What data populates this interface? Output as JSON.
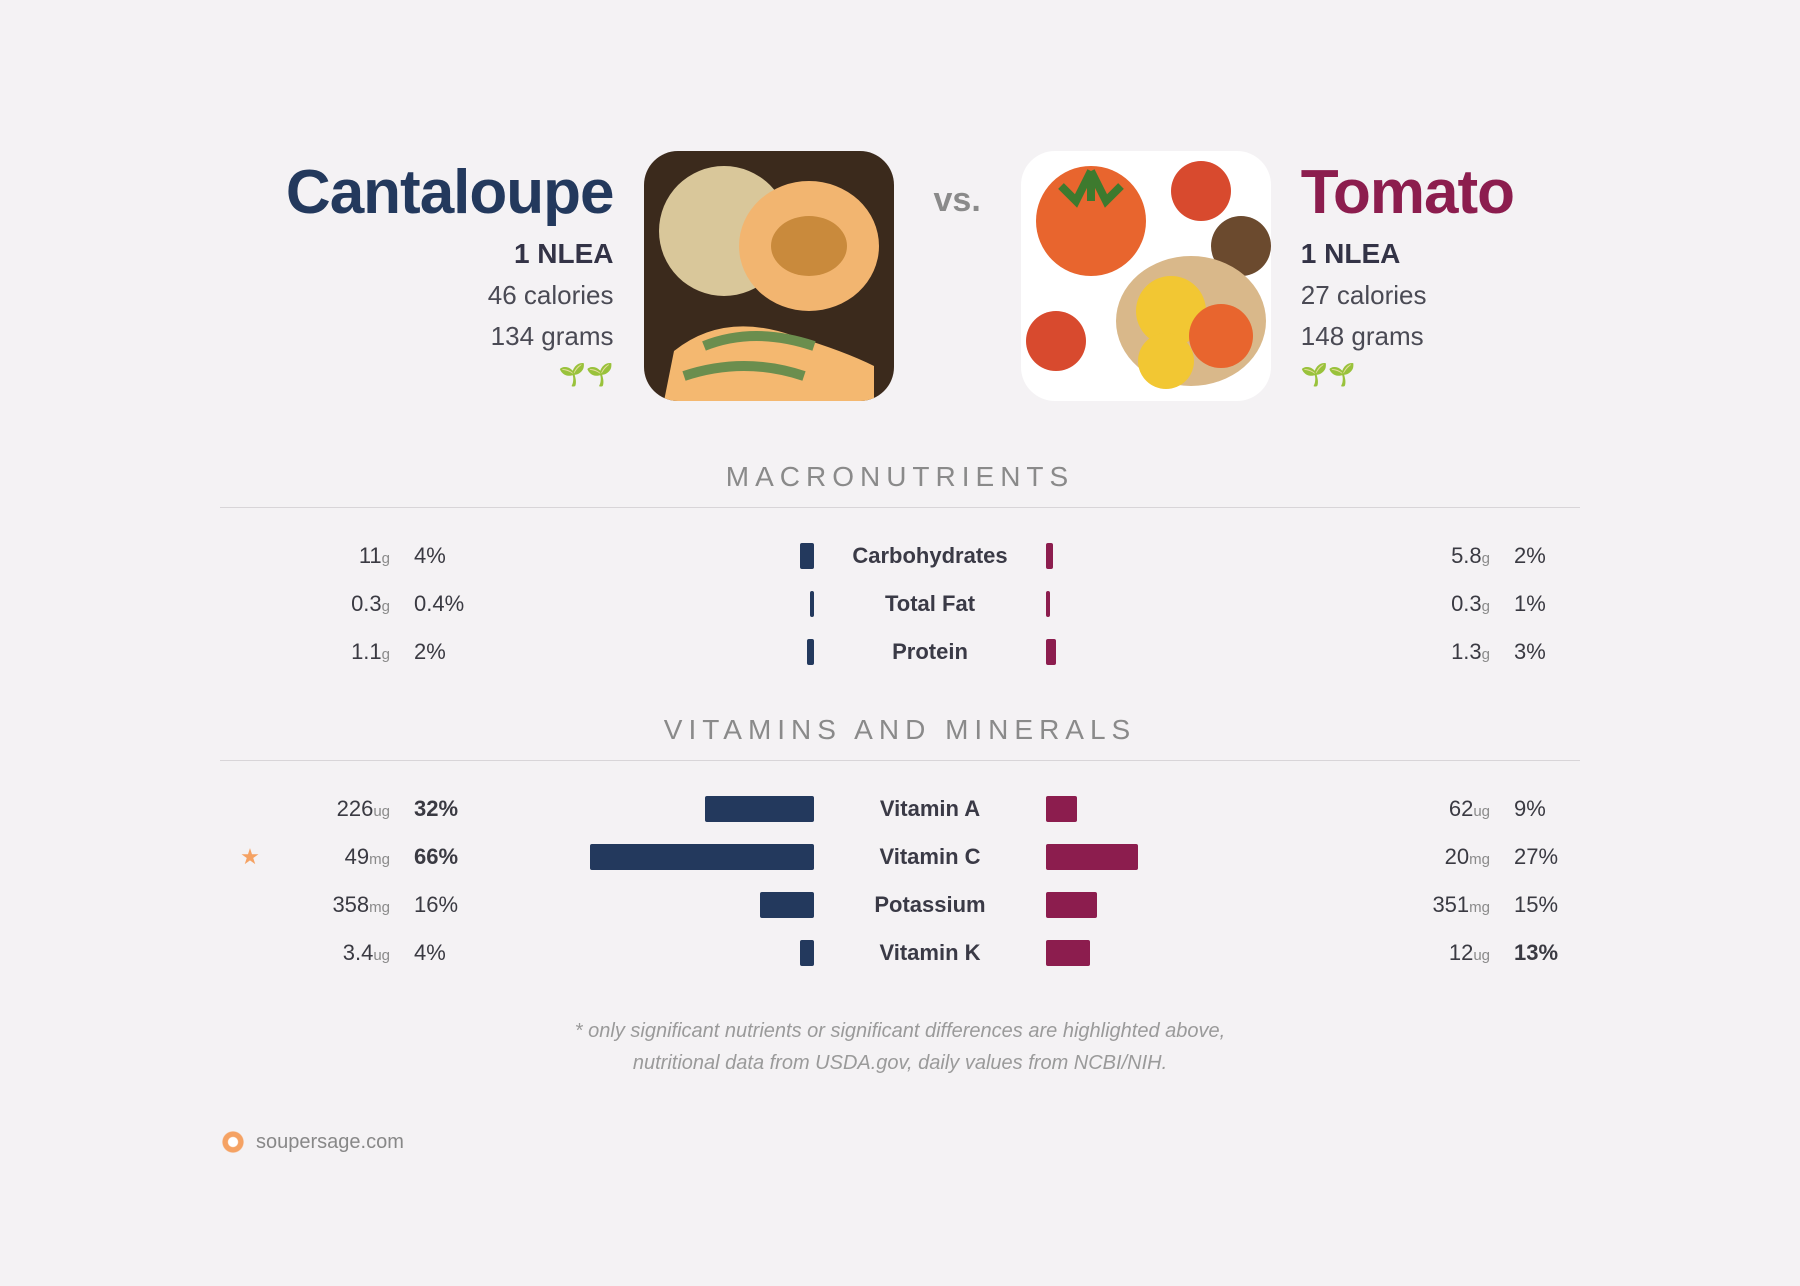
{
  "vs": "vs.",
  "left": {
    "title": "Cantaloupe",
    "titleColor": "#23395d",
    "serving": "1 NLEA",
    "calories": "46 calories",
    "grams": "134 grams",
    "sprouts": "🌱🌱"
  },
  "right": {
    "title": "Tomato",
    "titleColor": "#8c1d4e",
    "serving": "1 NLEA",
    "calories": "27 calories",
    "grams": "148 grams",
    "sprouts": "🌱🌱"
  },
  "colors": {
    "leftBar": "#23395d",
    "rightBar": "#8c1d4e"
  },
  "barMax": 100,
  "barFullWidth": 340,
  "sections": [
    {
      "title": "MACRONUTRIENTS",
      "rows": [
        {
          "label": "Carbohydrates",
          "lVal": "11",
          "lUnit": "g",
          "lPct": "4%",
          "lBold": false,
          "lBar": 4,
          "rVal": "5.8",
          "rUnit": "g",
          "rPct": "2%",
          "rBold": false,
          "rBar": 2,
          "star": false
        },
        {
          "label": "Total Fat",
          "lVal": "0.3",
          "lUnit": "g",
          "lPct": "0.4%",
          "lBold": false,
          "lBar": 0.4,
          "rVal": "0.3",
          "rUnit": "g",
          "rPct": "1%",
          "rBold": false,
          "rBar": 1,
          "star": false
        },
        {
          "label": "Protein",
          "lVal": "1.1",
          "lUnit": "g",
          "lPct": "2%",
          "lBold": false,
          "lBar": 2,
          "rVal": "1.3",
          "rUnit": "g",
          "rPct": "3%",
          "rBold": false,
          "rBar": 3,
          "star": false
        }
      ]
    },
    {
      "title": "VITAMINS AND MINERALS",
      "rows": [
        {
          "label": "Vitamin A",
          "lVal": "226",
          "lUnit": "ug",
          "lPct": "32%",
          "lBold": true,
          "lBar": 32,
          "rVal": "62",
          "rUnit": "ug",
          "rPct": "9%",
          "rBold": false,
          "rBar": 9,
          "star": false
        },
        {
          "label": "Vitamin C",
          "lVal": "49",
          "lUnit": "mg",
          "lPct": "66%",
          "lBold": true,
          "lBar": 66,
          "rVal": "20",
          "rUnit": "mg",
          "rPct": "27%",
          "rBold": false,
          "rBar": 27,
          "star": true
        },
        {
          "label": "Potassium",
          "lVal": "358",
          "lUnit": "mg",
          "lPct": "16%",
          "lBold": false,
          "lBar": 16,
          "rVal": "351",
          "rUnit": "mg",
          "rPct": "15%",
          "rBold": false,
          "rBar": 15,
          "star": false
        },
        {
          "label": "Vitamin K",
          "lVal": "3.4",
          "lUnit": "ug",
          "lPct": "4%",
          "lBold": false,
          "lBar": 4,
          "rVal": "12",
          "rUnit": "ug",
          "rPct": "13%",
          "rBold": true,
          "rBar": 13,
          "star": false
        }
      ]
    }
  ],
  "footnote1": "* only significant nutrients or significant differences are highlighted above,",
  "footnote2": "nutritional data from USDA.gov, daily values from NCBI/NIH.",
  "footer": "soupersage.com"
}
